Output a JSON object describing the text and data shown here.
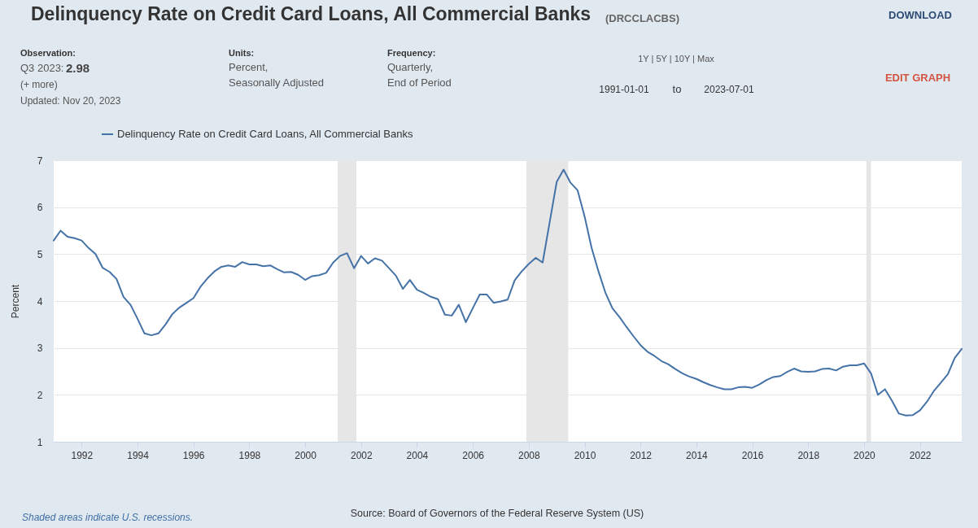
{
  "chart_data": {
    "type": "line",
    "title": "Delinquency Rate on Credit Card Loans, All Commercial Banks",
    "ylabel": "Percent",
    "annotations": [
      "(DRCCLACBS)",
      "Observation:",
      "Q3 2023:",
      "2.98",
      "(+ more)",
      "Updated: Nov 20, 2023",
      "Units:",
      "Percent,",
      "Seasonally Adjusted",
      "Frequency:",
      "Quarterly,",
      "End of Period",
      "1Y | 5Y | 10Y | Max",
      "1991-01-01",
      "to",
      "2023-07-01",
      "DOWNLOAD",
      "EDIT GRAPH",
      "Shaded areas indicate U.S. recessions.",
      "Source: Board of Governors of the Federal Reserve System (US)"
    ],
    "x": [
      "1991-01",
      "1991-04",
      "1991-07",
      "1991-10",
      "1992-01",
      "1992-04",
      "1992-07",
      "1992-10",
      "1993-01",
      "1993-04",
      "1993-07",
      "1993-10",
      "1994-01",
      "1994-04",
      "1994-07",
      "1994-10",
      "1995-01",
      "1995-04",
      "1995-07",
      "1995-10",
      "1996-01",
      "1996-04",
      "1996-07",
      "1996-10",
      "1997-01",
      "1997-04",
      "1997-07",
      "1997-10",
      "1998-01",
      "1998-04",
      "1998-07",
      "1998-10",
      "1999-01",
      "1999-04",
      "1999-07",
      "1999-10",
      "2000-01",
      "2000-04",
      "2000-07",
      "2000-10",
      "2001-01",
      "2001-04",
      "2001-07",
      "2001-10",
      "2002-01",
      "2002-04",
      "2002-07",
      "2002-10",
      "2003-01",
      "2003-04",
      "2003-07",
      "2003-10",
      "2004-01",
      "2004-04",
      "2004-07",
      "2004-10",
      "2005-01",
      "2005-04",
      "2005-07",
      "2005-10",
      "2006-01",
      "2006-04",
      "2006-07",
      "2006-10",
      "2007-01",
      "2007-04",
      "2007-07",
      "2007-10",
      "2008-01",
      "2008-04",
      "2008-07",
      "2008-10",
      "2009-01",
      "2009-04",
      "2009-07",
      "2009-10",
      "2010-01",
      "2010-04",
      "2010-07",
      "2010-10",
      "2011-01",
      "2011-04",
      "2011-07",
      "2011-10",
      "2012-01",
      "2012-04",
      "2012-07",
      "2012-10",
      "2013-01",
      "2013-04",
      "2013-07",
      "2013-10",
      "2014-01",
      "2014-04",
      "2014-07",
      "2014-10",
      "2015-01",
      "2015-04",
      "2015-07",
      "2015-10",
      "2016-01",
      "2016-04",
      "2016-07",
      "2016-10",
      "2017-01",
      "2017-04",
      "2017-07",
      "2017-10",
      "2018-01",
      "2018-04",
      "2018-07",
      "2018-10",
      "2019-01",
      "2019-04",
      "2019-07",
      "2019-10",
      "2020-01",
      "2020-04",
      "2020-07",
      "2020-10",
      "2021-01",
      "2021-04",
      "2021-07",
      "2021-10",
      "2022-01",
      "2022-04",
      "2022-07",
      "2022-10",
      "2023-01",
      "2023-04",
      "2023-07"
    ],
    "series": [
      {
        "name": "Delinquency Rate on Credit Card Loans, All Commercial Banks",
        "color": "#4572a7",
        "values": [
          5.29,
          5.5,
          5.37,
          5.34,
          5.29,
          5.13,
          5.0,
          4.71,
          4.62,
          4.47,
          4.09,
          3.92,
          3.62,
          3.31,
          3.27,
          3.31,
          3.5,
          3.72,
          3.86,
          3.96,
          4.06,
          4.3,
          4.48,
          4.63,
          4.73,
          4.76,
          4.73,
          4.83,
          4.78,
          4.78,
          4.74,
          4.76,
          4.68,
          4.61,
          4.62,
          4.56,
          4.45,
          4.53,
          4.55,
          4.6,
          4.82,
          4.96,
          5.02,
          4.7,
          4.96,
          4.8,
          4.91,
          4.86,
          4.7,
          4.54,
          4.26,
          4.45,
          4.24,
          4.17,
          4.09,
          4.04,
          3.71,
          3.69,
          3.92,
          3.55,
          3.85,
          4.14,
          4.14,
          3.96,
          3.99,
          4.03,
          4.44,
          4.63,
          4.79,
          4.92,
          4.82,
          5.68,
          6.54,
          6.8,
          6.52,
          6.36,
          5.8,
          5.14,
          4.63,
          4.17,
          3.84,
          3.66,
          3.45,
          3.25,
          3.06,
          2.92,
          2.83,
          2.72,
          2.65,
          2.55,
          2.46,
          2.39,
          2.34,
          2.27,
          2.21,
          2.16,
          2.12,
          2.12,
          2.16,
          2.17,
          2.15,
          2.22,
          2.31,
          2.38,
          2.4,
          2.49,
          2.56,
          2.5,
          2.49,
          2.5,
          2.55,
          2.56,
          2.52,
          2.6,
          2.63,
          2.63,
          2.67,
          2.46,
          2.0,
          2.12,
          1.87,
          1.6,
          1.56,
          1.57,
          1.67,
          1.85,
          2.08,
          2.26,
          2.44,
          2.79,
          2.98
        ]
      }
    ],
    "xlim": [
      "1991-01",
      "2023-07"
    ],
    "xticks": [
      "1992",
      "1994",
      "1996",
      "1998",
      "2000",
      "2002",
      "2004",
      "2006",
      "2008",
      "2010",
      "2012",
      "2014",
      "2016",
      "2018",
      "2020",
      "2022"
    ],
    "ylim": [
      1,
      7
    ],
    "yticks": [
      1,
      2,
      3,
      4,
      5,
      6,
      7
    ],
    "bands": [
      {
        "axis": "x",
        "from": "2001-03",
        "to": "2001-11",
        "color": "#e6e6e6"
      },
      {
        "axis": "x",
        "from": "2007-12",
        "to": "2009-06",
        "color": "#e6e6e6"
      },
      {
        "axis": "x",
        "from": "2020-02",
        "to": "2020-04",
        "color": "#e6e6e6"
      }
    ],
    "grid": "y",
    "legend": "top left",
    "line_style": "solid"
  }
}
